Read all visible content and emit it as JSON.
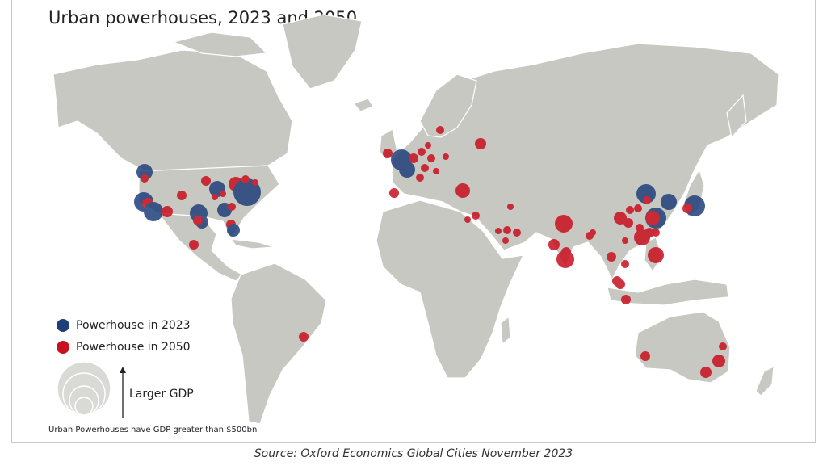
{
  "title": "Urban powerhouses, 2023 and 2050",
  "legend": {
    "item_2023": "Powerhouse in 2023",
    "item_2050": "Powerhouse in 2050",
    "size_label": "Larger GDP",
    "color_2023": "#1f3f7a",
    "color_2050": "#c8101e"
  },
  "note": "Urban Powerhouses have GDP greater than $500bn",
  "source": "Source: Oxford Economics Global Cities November 2023"
}
